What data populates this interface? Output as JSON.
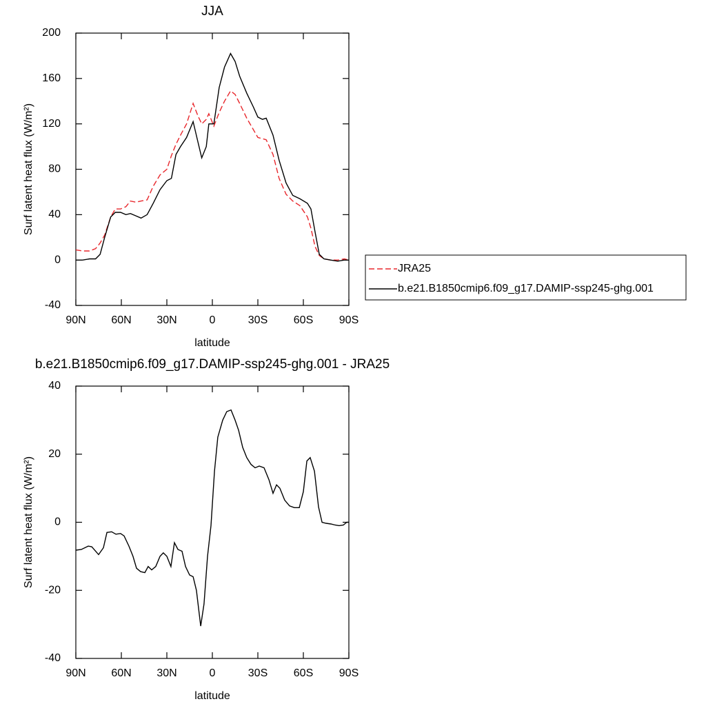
{
  "chart_data": [
    {
      "type": "line",
      "title": "JJA",
      "xlabel": "latitude",
      "ylabel": "Surf latent heat flux (W/m²)",
      "x": [
        90,
        85.5,
        81,
        77,
        74,
        71,
        67,
        64,
        60.5,
        57,
        54,
        50.5,
        47,
        43,
        39,
        34.5,
        30,
        27,
        24,
        21,
        17,
        12.7,
        9.5,
        7,
        4,
        2.3,
        -1,
        -4.5,
        -8,
        -12,
        -15,
        -18,
        -22.7,
        -27,
        -30,
        -33,
        -35.5,
        -40,
        -44,
        -48.6,
        -53,
        -57.7,
        -62.7,
        -65,
        -67.7,
        -70.5,
        -73.6,
        -78,
        -82.7,
        -87,
        -90
      ],
      "series": [
        {
          "name": "JRA25",
          "color": "#e8262b",
          "line_style": "dashed",
          "values": [
            9,
            8,
            8,
            10,
            15,
            22,
            38,
            45,
            45,
            47,
            52,
            51,
            52,
            53,
            65,
            75,
            80,
            92,
            102,
            110,
            120,
            138,
            127,
            120,
            124,
            129,
            118,
            130,
            140,
            149,
            146,
            138,
            125,
            115,
            108,
            107,
            106,
            93,
            72,
            58,
            52,
            48,
            38,
            28,
            12,
            4,
            1,
            0,
            0,
            1,
            0
          ]
        },
        {
          "name": "b.e21.B1850cmip6.f09_g17.DAMIP-ssp245-ghg.001",
          "color": "#000000",
          "line_style": "solid",
          "values": [
            0,
            0,
            1,
            1,
            5,
            20,
            38,
            42,
            42,
            40,
            41,
            39,
            37,
            40,
            50,
            62,
            70,
            72,
            93,
            100,
            108,
            122,
            104,
            90,
            100,
            120,
            120,
            152,
            170,
            182,
            175,
            162,
            147,
            135,
            126,
            124,
            125,
            110,
            88,
            68,
            57,
            54,
            50,
            45,
            25,
            5,
            1,
            0,
            -1,
            0,
            0
          ]
        }
      ],
      "xlim": [
        90,
        -90
      ],
      "xticks": [
        {
          "value": 90,
          "label": "90N"
        },
        {
          "value": 60,
          "label": "60N"
        },
        {
          "value": 30,
          "label": "30N"
        },
        0,
        {
          "value": -30,
          "label": "30S"
        },
        {
          "value": -60,
          "label": "60S"
        },
        {
          "value": -90,
          "label": "90S"
        }
      ],
      "ylim": [
        -40,
        200
      ],
      "yticks": [
        -40,
        0,
        40,
        80,
        120,
        160,
        200
      ],
      "legend": "right"
    },
    {
      "type": "line",
      "title": "b.e21.B1850cmip6.f09_g17.DAMIP-ssp245-ghg.001 - JRA25",
      "xlabel": "latitude",
      "ylabel": "Surf latent heat flux (W/m²)",
      "x": [
        90,
        86.4,
        81.8,
        79.5,
        75,
        71.8,
        69.5,
        66.4,
        63.6,
        60.5,
        58.2,
        55,
        52.3,
        50,
        47.3,
        44.5,
        42.3,
        40,
        37.3,
        34.5,
        32.3,
        30,
        27.3,
        25,
        22.7,
        20,
        17.7,
        15,
        12.7,
        10.5,
        7.7,
        5.5,
        3.2,
        0.9,
        -1.4,
        -3.6,
        -6.8,
        -9.5,
        -12.3,
        -15,
        -17.3,
        -20,
        -22.7,
        -25.5,
        -28.2,
        -30.9,
        -34.1,
        -37.3,
        -40,
        -42.3,
        -44.5,
        -47.7,
        -50.9,
        -54.1,
        -57.3,
        -60,
        -62.3,
        -64.5,
        -67.3,
        -70,
        -72.3,
        -75,
        -78.2,
        -80.9,
        -83.6,
        -86.4,
        -88.6,
        -90
      ],
      "series": [
        {
          "color": "#000000",
          "line_style": "solid",
          "values": [
            -8.2,
            -8,
            -7,
            -7.2,
            -9.5,
            -7.5,
            -3,
            -2.8,
            -3.5,
            -3.3,
            -4,
            -7,
            -10,
            -13.5,
            -14.5,
            -14.8,
            -13,
            -14,
            -13,
            -10,
            -9,
            -10,
            -13,
            -6,
            -8,
            -8.5,
            -13,
            -15.5,
            -16,
            -20,
            -30.5,
            -24,
            -10,
            -1,
            15,
            25,
            30,
            32.5,
            33,
            30,
            27,
            22,
            19,
            17,
            16,
            16.5,
            16,
            12.5,
            8.5,
            11,
            10,
            6.5,
            4.8,
            4.3,
            4.3,
            9,
            18,
            19,
            15,
            4.5,
            0,
            -0.3,
            -0.5,
            -0.8,
            -1,
            -0.8,
            0,
            0
          ]
        }
      ],
      "xlim": [
        90,
        -90
      ],
      "xticks": [
        {
          "value": 90,
          "label": "90N"
        },
        {
          "value": 60,
          "label": "60N"
        },
        {
          "value": 30,
          "label": "30N"
        },
        0,
        {
          "value": -30,
          "label": "30S"
        },
        {
          "value": -60,
          "label": "60S"
        },
        {
          "value": -90,
          "label": "90S"
        }
      ],
      "ylim": [
        -40,
        40
      ],
      "yticks": [
        -40,
        -20,
        0,
        20,
        40
      ]
    }
  ]
}
